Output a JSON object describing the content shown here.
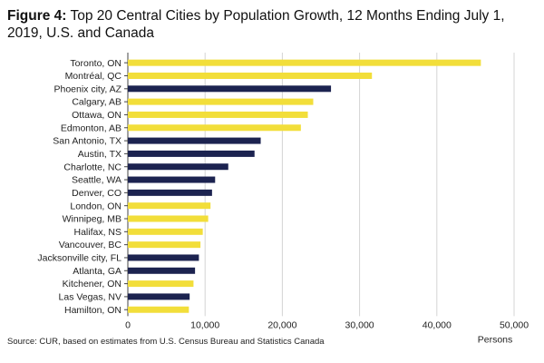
{
  "figure_label": "Figure 4:",
  "figure_title": "Top 20 Central Cities by Population Growth, 12 Months Ending July 1, 2019, U.S. and Canada",
  "source": "Source: CUR, based on estimates from U.S. Census Bureau and Statistics Canada",
  "colors": {
    "canada": "#F2DE3A",
    "us": "#1C2350",
    "grid": "#d4d4d4"
  },
  "chart_data": {
    "type": "bar",
    "orientation": "horizontal",
    "title": "Top 20 Central Cities by Population Growth, 12 Months Ending July 1, 2019, U.S. and Canada",
    "xlabel": "Persons",
    "ylabel": "",
    "xlim": [
      0,
      50000
    ],
    "xticks": [
      0,
      10000,
      20000,
      30000,
      40000,
      50000
    ],
    "xtick_labels": [
      "0",
      "10,000",
      "20,000",
      "30,000",
      "40,000",
      "50,000"
    ],
    "grid": "vertical",
    "categories": [
      "Toronto, ON",
      "Montréal, QC",
      "Phoenix city, AZ",
      "Calgary, AB",
      "Ottawa, ON",
      "Edmonton, AB",
      "San Antonio, TX",
      "Austin, TX",
      "Charlotte, NC",
      "Seattle, WA",
      "Denver, CO",
      "London, ON",
      "Winnipeg, MB",
      "Halifax, NS",
      "Vancouver, BC",
      "Jacksonville city, FL",
      "Atlanta, GA",
      "Kitchener, ON",
      "Las Vegas, NV",
      "Hamilton, ON"
    ],
    "values": [
      45700,
      31600,
      26300,
      24000,
      23300,
      22400,
      17200,
      16400,
      13000,
      11300,
      10900,
      10700,
      10400,
      9700,
      9400,
      9200,
      8700,
      8500,
      8000,
      7900
    ],
    "country": [
      "CA",
      "CA",
      "US",
      "CA",
      "CA",
      "CA",
      "US",
      "US",
      "US",
      "US",
      "US",
      "CA",
      "CA",
      "CA",
      "CA",
      "US",
      "US",
      "CA",
      "US",
      "CA"
    ]
  }
}
